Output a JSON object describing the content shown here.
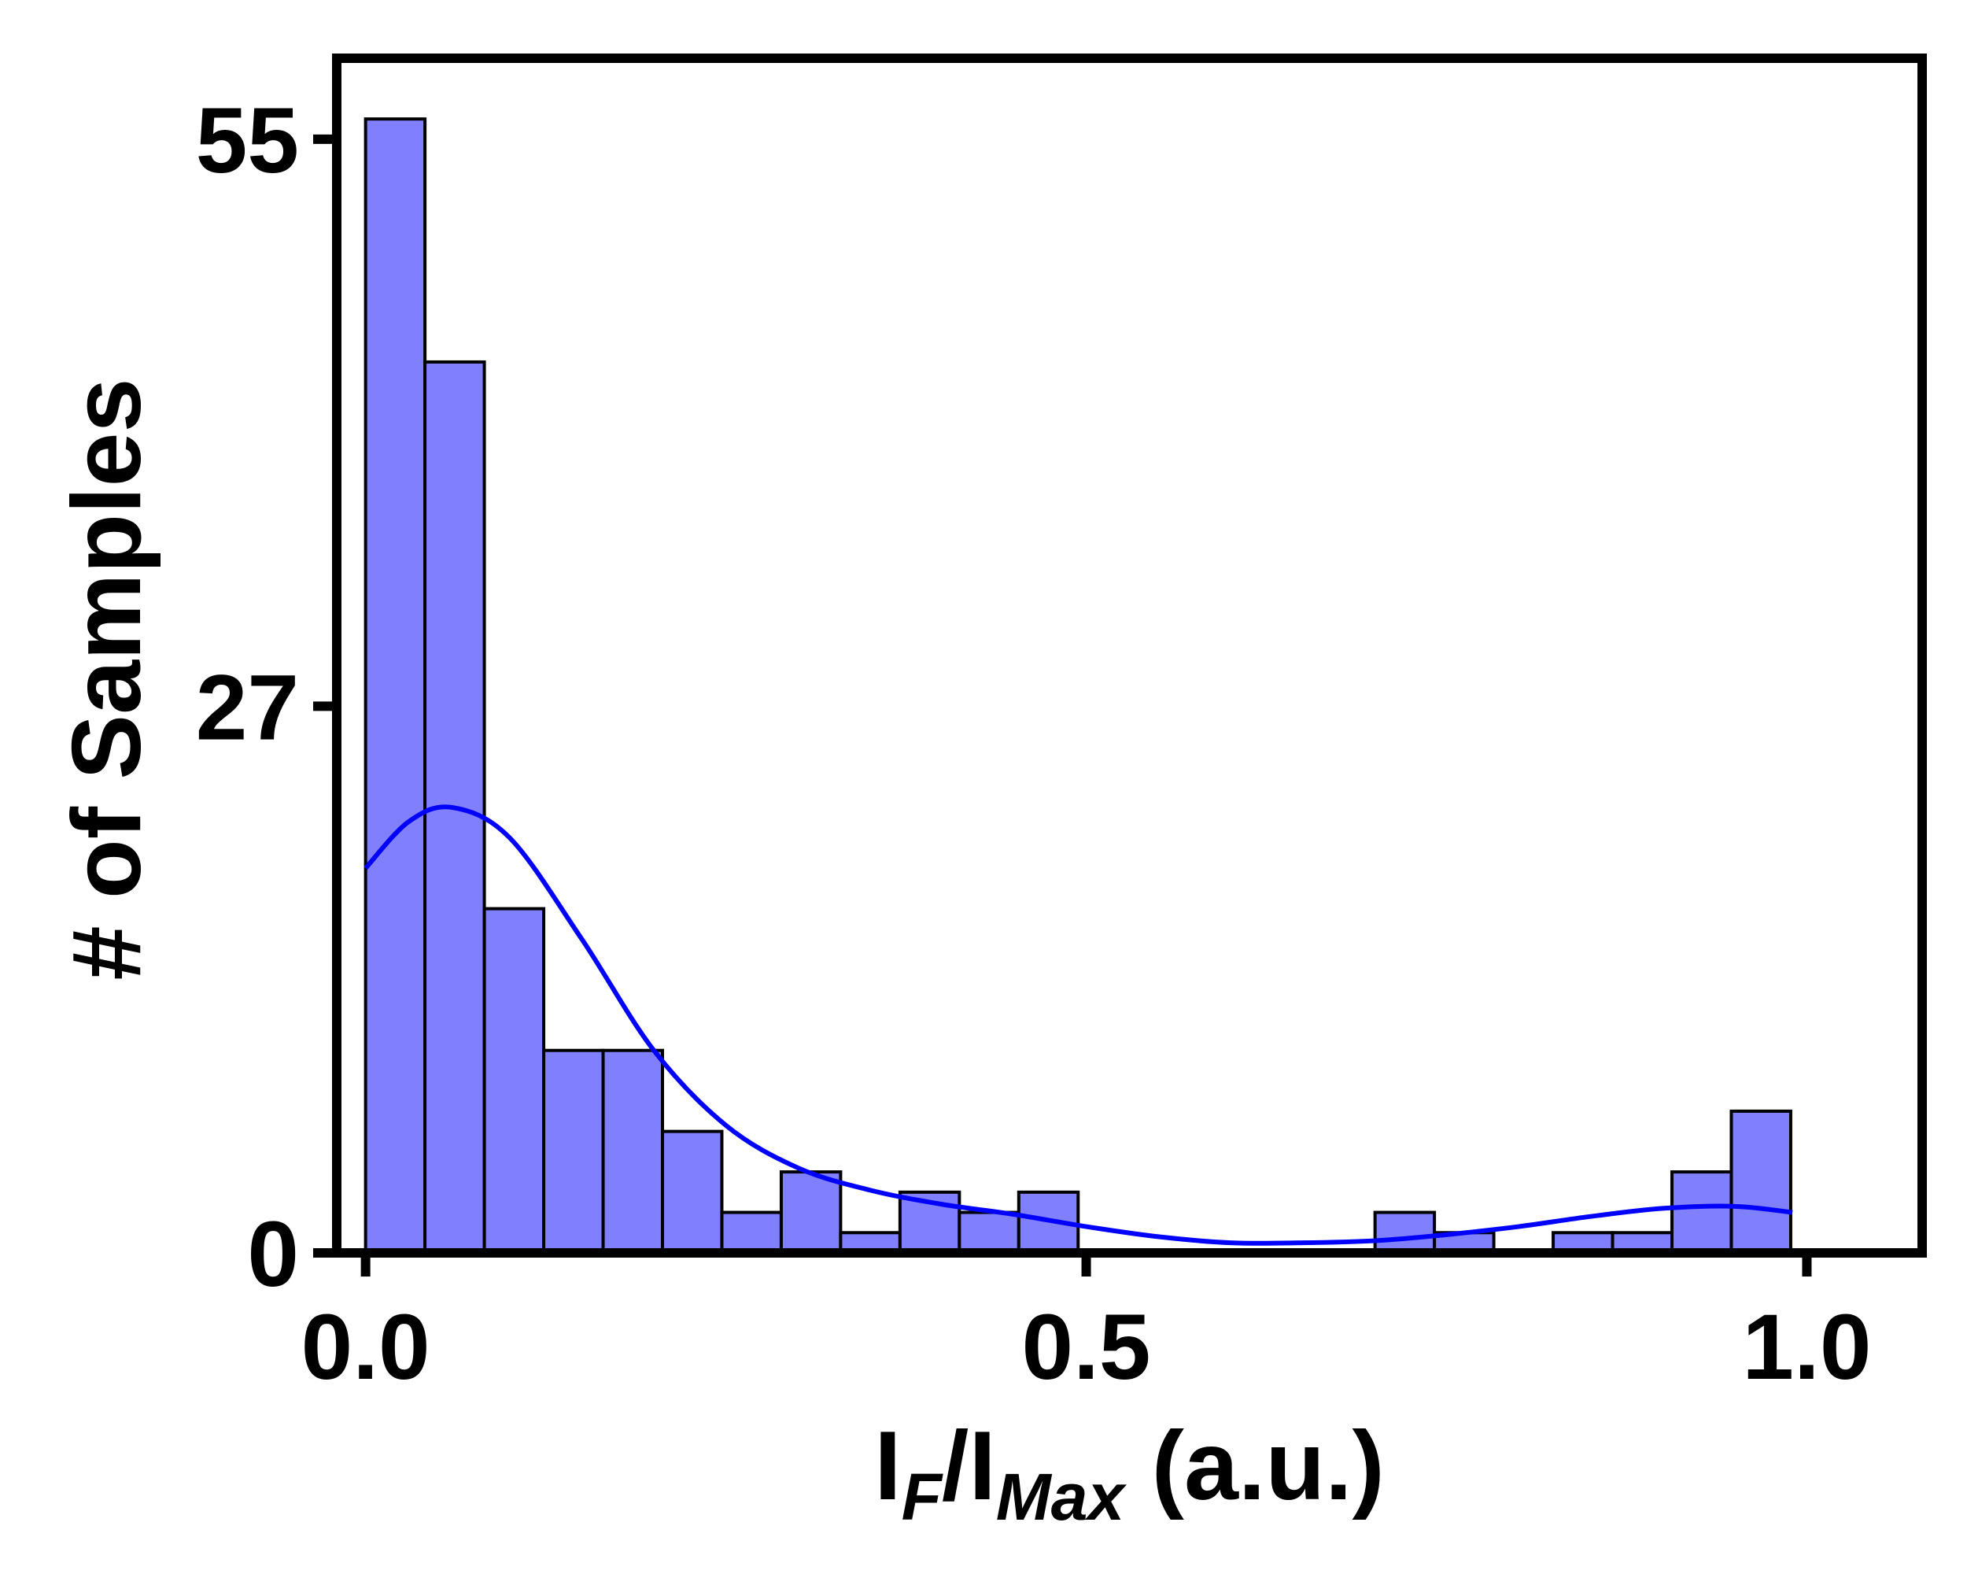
{
  "chart_data": {
    "type": "bar",
    "title": "",
    "xlabel": {
      "main1": "I",
      "sub1": "F",
      "mid": "/I",
      "sub2": "Max",
      "tail": " (a.u.)"
    },
    "ylabel": "# of Samples",
    "xlim": [
      -0.02,
      1.08
    ],
    "ylim": [
      0,
      59
    ],
    "xticks": [
      0.0,
      0.5,
      1.0
    ],
    "xtick_labels": [
      "0.0",
      "0.5",
      "1.0"
    ],
    "yticks": [
      0,
      27,
      55
    ],
    "ytick_labels": [
      "0",
      "27",
      "55"
    ],
    "grid": false,
    "bin_width": 0.0412,
    "bins": [
      {
        "x0": 0.0,
        "count": 56
      },
      {
        "x0": 0.0412,
        "count": 44
      },
      {
        "x0": 0.0824,
        "count": 17
      },
      {
        "x0": 0.1236,
        "count": 10
      },
      {
        "x0": 0.1648,
        "count": 10
      },
      {
        "x0": 0.206,
        "count": 6
      },
      {
        "x0": 0.2472,
        "count": 2
      },
      {
        "x0": 0.2884,
        "count": 4
      },
      {
        "x0": 0.3296,
        "count": 1
      },
      {
        "x0": 0.3708,
        "count": 3
      },
      {
        "x0": 0.412,
        "count": 2
      },
      {
        "x0": 0.4532,
        "count": 3
      },
      {
        "x0": 0.7004,
        "count": 2
      },
      {
        "x0": 0.7416,
        "count": 1
      },
      {
        "x0": 0.824,
        "count": 1
      },
      {
        "x0": 0.8652,
        "count": 1
      },
      {
        "x0": 0.9064,
        "count": 4
      },
      {
        "x0": 0.9476,
        "count": 7
      }
    ],
    "kde": {
      "x": [
        0.0,
        0.03,
        0.06,
        0.1,
        0.15,
        0.2,
        0.25,
        0.3,
        0.35,
        0.4,
        0.45,
        0.5,
        0.55,
        0.6,
        0.65,
        0.7,
        0.75,
        0.8,
        0.85,
        0.9,
        0.95,
        0.99
      ],
      "y": [
        19,
        21.3,
        22,
        20.5,
        15.5,
        10,
        6.3,
        4.2,
        3.1,
        2.4,
        1.9,
        1.3,
        0.8,
        0.5,
        0.5,
        0.6,
        0.9,
        1.3,
        1.8,
        2.2,
        2.3,
        2.0
      ]
    },
    "colors": {
      "bar_fill": "#8080ff",
      "bar_edge": "#000000",
      "kde_line": "#0000ff",
      "axes": "#000000"
    }
  }
}
